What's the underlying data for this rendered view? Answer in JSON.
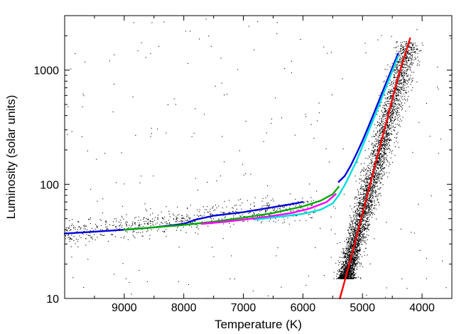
{
  "chart_data": {
    "type": "scatter",
    "title": "",
    "xlabel": "Temperature (K)",
    "ylabel": "Luminosity (solar units)",
    "x_reversed": true,
    "xlim": [
      10000,
      3500
    ],
    "ylim": [
      10,
      3000
    ],
    "y_scale": "log",
    "grid": false,
    "legend": "none",
    "x_ticks": [
      {
        "value": 9000,
        "label": "9000"
      },
      {
        "value": 8000,
        "label": "8000"
      },
      {
        "value": 7000,
        "label": "7000"
      },
      {
        "value": 6000,
        "label": "6000"
      },
      {
        "value": 5000,
        "label": "5000"
      },
      {
        "value": 4000,
        "label": "4000"
      }
    ],
    "y_ticks": [
      {
        "value": 10,
        "label": "10"
      },
      {
        "value": 100,
        "label": "100"
      },
      {
        "value": 1000,
        "label": "1000"
      }
    ],
    "scatter_regions": [
      {
        "label": "red giant branch",
        "color": "#000000",
        "t_range": [
          5400,
          4200
        ],
        "l_range": [
          15,
          1800
        ]
      },
      {
        "label": "horizontal branch",
        "color": "#000000",
        "t_range": [
          10000,
          5600
        ],
        "l_range": [
          35,
          60
        ]
      }
    ],
    "series": [
      {
        "color": "#ff0000",
        "style": "line",
        "x": [
          5380,
          5200,
          5000,
          4800,
          4600,
          4400,
          4200
        ],
        "y": [
          10,
          22,
          55,
          140,
          350,
          880,
          1900
        ]
      },
      {
        "color": "#0000dd",
        "style": "line",
        "x": [
          10000,
          9000,
          8500,
          8000,
          7800,
          7500,
          7000,
          6500,
          6200,
          6000
        ],
        "y": [
          37,
          40,
          42,
          45,
          49,
          53,
          57,
          63,
          67,
          70
        ]
      },
      {
        "color": "#0000dd",
        "style": "line",
        "x": [
          5400,
          5300,
          5200,
          5100,
          5000,
          4900,
          4800,
          4700,
          4600,
          4500,
          4400
        ],
        "y": [
          105,
          118,
          145,
          185,
          240,
          320,
          430,
          580,
          780,
          1050,
          1400
        ]
      },
      {
        "color": "#00aa00",
        "style": "line",
        "x": [
          9000,
          8500,
          8000,
          7500,
          7000,
          6500,
          6000,
          5700,
          5500,
          5400
        ],
        "y": [
          40,
          42,
          44,
          47,
          51,
          56,
          64,
          72,
          82,
          95
        ]
      },
      {
        "color": "#ff00ff",
        "style": "line",
        "x": [
          7700,
          7300,
          7000,
          6600,
          6200,
          5900,
          5600,
          5450
        ],
        "y": [
          45,
          47,
          49,
          52,
          56,
          61,
          70,
          82
        ]
      },
      {
        "color": "#00dddd",
        "style": "line",
        "x": [
          6800,
          6400,
          6000,
          5700,
          5500,
          5400,
          5300,
          5200,
          5100,
          5000,
          4900,
          4800,
          4700,
          4600,
          4500,
          4400
        ],
        "y": [
          49,
          52,
          55,
          60,
          68,
          80,
          98,
          125,
          160,
          215,
          290,
          390,
          530,
          720,
          980,
          1320
        ]
      }
    ]
  }
}
